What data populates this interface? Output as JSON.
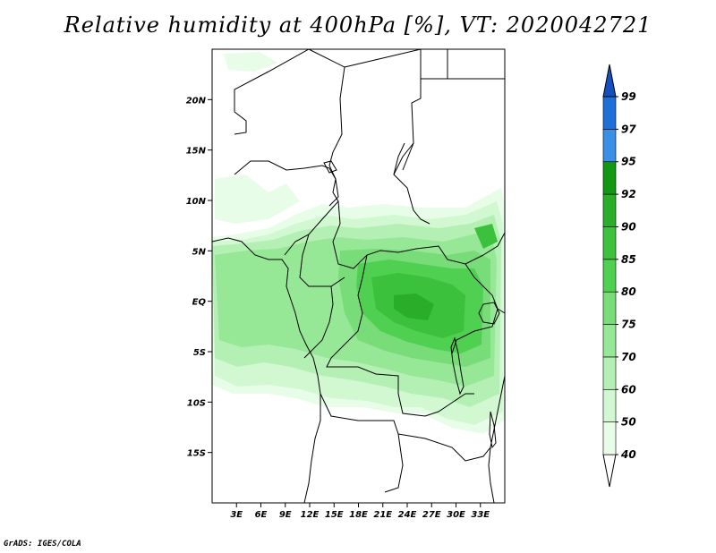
{
  "title": "Relative humidity at 400hPa [%], VT: 2020042721",
  "credit": "GrADS: IGES/COLA",
  "map": {
    "lon_range": [
      0,
      36
    ],
    "lat_range": [
      -20,
      25
    ],
    "lon_ticks": [
      {
        "value": 3,
        "label": "3E"
      },
      {
        "value": 6,
        "label": "6E"
      },
      {
        "value": 9,
        "label": "9E"
      },
      {
        "value": 12,
        "label": "12E"
      },
      {
        "value": 15,
        "label": "15E"
      },
      {
        "value": 18,
        "label": "18E"
      },
      {
        "value": 21,
        "label": "21E"
      },
      {
        "value": 24,
        "label": "24E"
      },
      {
        "value": 27,
        "label": "27E"
      },
      {
        "value": 30,
        "label": "30E"
      },
      {
        "value": 33,
        "label": "33E"
      }
    ],
    "lat_ticks": [
      {
        "value": 20,
        "label": "20N"
      },
      {
        "value": 15,
        "label": "15N"
      },
      {
        "value": 10,
        "label": "10N"
      },
      {
        "value": 5,
        "label": "5N"
      },
      {
        "value": 0,
        "label": "EQ"
      },
      {
        "value": -5,
        "label": "5S"
      },
      {
        "value": -10,
        "label": "10S"
      },
      {
        "value": -15,
        "label": "15S"
      }
    ]
  },
  "colorbar": {
    "levels": [
      {
        "label": "40",
        "color": "#e8fde8"
      },
      {
        "label": "50",
        "color": "#d2f8d2"
      },
      {
        "label": "60",
        "color": "#b4f0b4"
      },
      {
        "label": "70",
        "color": "#96e896"
      },
      {
        "label": "75",
        "color": "#78dc78"
      },
      {
        "label": "80",
        "color": "#50d050"
      },
      {
        "label": "85",
        "color": "#3cc13c"
      },
      {
        "label": "90",
        "color": "#2aae2a"
      },
      {
        "label": "92",
        "color": "#129812"
      },
      {
        "label": "95",
        "color": "#3a90e6"
      },
      {
        "label": "97",
        "color": "#1f6fd8"
      },
      {
        "label": "99",
        "color": "#1450c0"
      }
    ],
    "below_color": "#ffffff",
    "above_color": "#1450c0"
  }
}
